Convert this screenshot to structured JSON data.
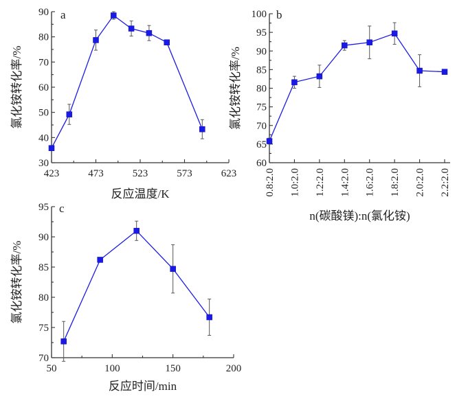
{
  "chart_data": [
    {
      "panel": "a",
      "type": "line",
      "xlabel": "反应温度/K",
      "ylabel": "氯化铵转化率/%",
      "xlim": [
        423,
        623
      ],
      "ylim": [
        30,
        90
      ],
      "xticks": [
        423,
        473,
        523,
        573,
        623
      ],
      "yticks": [
        30,
        40,
        50,
        60,
        70,
        80,
        90
      ],
      "x": [
        423,
        443,
        473,
        493,
        513,
        533,
        553,
        593
      ],
      "values": [
        35.8,
        49.2,
        78.7,
        88.5,
        83.3,
        81.5,
        77.8,
        43.3
      ],
      "errors": [
        0.8,
        4.0,
        4.0,
        1.5,
        3.0,
        3.0,
        0.8,
        3.8
      ]
    },
    {
      "panel": "b",
      "type": "line",
      "xlabel": "n(碳酸镁):n(氯化铵)",
      "ylabel": "氯化铵转化率/%",
      "ylim": [
        60,
        100
      ],
      "yticks": [
        60,
        65,
        70,
        75,
        80,
        85,
        90,
        95,
        100
      ],
      "categories": [
        "0.8:2.0",
        "1.0:2.0",
        "1.2:2.0",
        "1.4:2.0",
        "1.6:2.0",
        "1.8:2.0",
        "2.0:2.0",
        "2.2:2.0"
      ],
      "values": [
        65.8,
        81.6,
        83.2,
        91.5,
        92.3,
        94.7,
        84.7,
        84.4
      ],
      "errors": [
        0.8,
        1.6,
        3.0,
        1.3,
        4.4,
        2.9,
        4.3,
        0.5
      ]
    },
    {
      "panel": "c",
      "type": "line",
      "xlabel": "反应时间/min",
      "ylabel": "氯化铵转化率/%",
      "xlim": [
        50,
        200
      ],
      "ylim": [
        70,
        95
      ],
      "xticks": [
        50,
        100,
        150,
        200
      ],
      "yticks": [
        70,
        75,
        80,
        85,
        90,
        95
      ],
      "x": [
        60,
        90,
        120,
        150,
        180
      ],
      "values": [
        72.7,
        86.2,
        91.0,
        84.7,
        76.7
      ],
      "errors": [
        3.3,
        0.3,
        1.6,
        4.0,
        3.0
      ]
    }
  ],
  "colors": {
    "series": "#1a1ae6",
    "axis": "#333333",
    "errbar": "#555555"
  }
}
